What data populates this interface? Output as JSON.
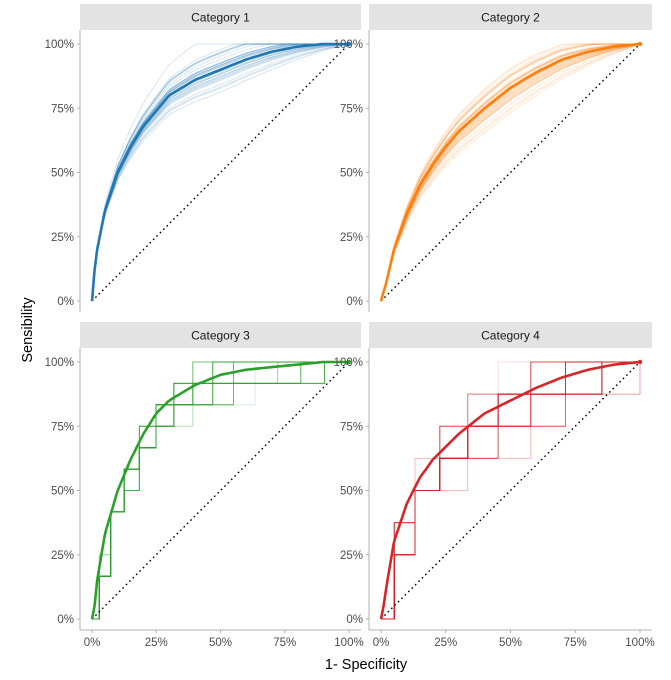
{
  "chart_data": {
    "type": "line",
    "chart_kind": "faceted ROC curves with resampled replicates",
    "xlabel": "1- Specificity",
    "ylabel": "Sensibility",
    "xlim": [
      0,
      1
    ],
    "ylim": [
      0,
      1
    ],
    "x_ticks": [
      0,
      0.25,
      0.5,
      0.75,
      1
    ],
    "x_tick_labels": [
      "0%",
      "25%",
      "50%",
      "75%",
      "100%"
    ],
    "y_ticks": [
      0,
      0.25,
      0.5,
      0.75,
      1
    ],
    "y_tick_labels": [
      "0%",
      "25%",
      "50%",
      "75%",
      "100%"
    ],
    "grid": false,
    "legend": "none",
    "reference_line": "diagonal dotted line from (0,0) to (1,1)",
    "facets": [
      {
        "title": "Category 1",
        "color": "#1f77b4",
        "x": [
          0,
          0.01,
          0.02,
          0.05,
          0.1,
          0.15,
          0.2,
          0.25,
          0.3,
          0.4,
          0.5,
          0.6,
          0.7,
          0.8,
          0.9,
          1
        ],
        "y": [
          0,
          0.12,
          0.2,
          0.35,
          0.5,
          0.6,
          0.68,
          0.74,
          0.8,
          0.86,
          0.9,
          0.94,
          0.97,
          0.99,
          1,
          1
        ]
      },
      {
        "title": "Category 2",
        "color": "#ff7f0e",
        "x": [
          0,
          0.02,
          0.05,
          0.1,
          0.15,
          0.2,
          0.25,
          0.3,
          0.4,
          0.5,
          0.6,
          0.7,
          0.8,
          0.9,
          1
        ],
        "y": [
          0,
          0.07,
          0.2,
          0.34,
          0.45,
          0.53,
          0.6,
          0.66,
          0.75,
          0.83,
          0.89,
          0.94,
          0.97,
          0.99,
          1
        ]
      },
      {
        "title": "Category 3",
        "color": "#2ca02c",
        "x": [
          0,
          0.01,
          0.02,
          0.05,
          0.1,
          0.15,
          0.2,
          0.25,
          0.3,
          0.4,
          0.5,
          0.6,
          0.7,
          0.8,
          0.9,
          1
        ],
        "y": [
          0,
          0.05,
          0.15,
          0.33,
          0.5,
          0.62,
          0.72,
          0.8,
          0.85,
          0.91,
          0.95,
          0.97,
          0.98,
          0.99,
          1,
          1
        ]
      },
      {
        "title": "Category 4",
        "color": "#d62728",
        "x": [
          0,
          0.01,
          0.02,
          0.05,
          0.1,
          0.15,
          0.2,
          0.3,
          0.4,
          0.5,
          0.6,
          0.7,
          0.8,
          0.9,
          1
        ],
        "y": [
          0,
          0.05,
          0.12,
          0.3,
          0.45,
          0.55,
          0.62,
          0.72,
          0.8,
          0.85,
          0.9,
          0.94,
          0.97,
          0.99,
          1
        ]
      }
    ]
  }
}
